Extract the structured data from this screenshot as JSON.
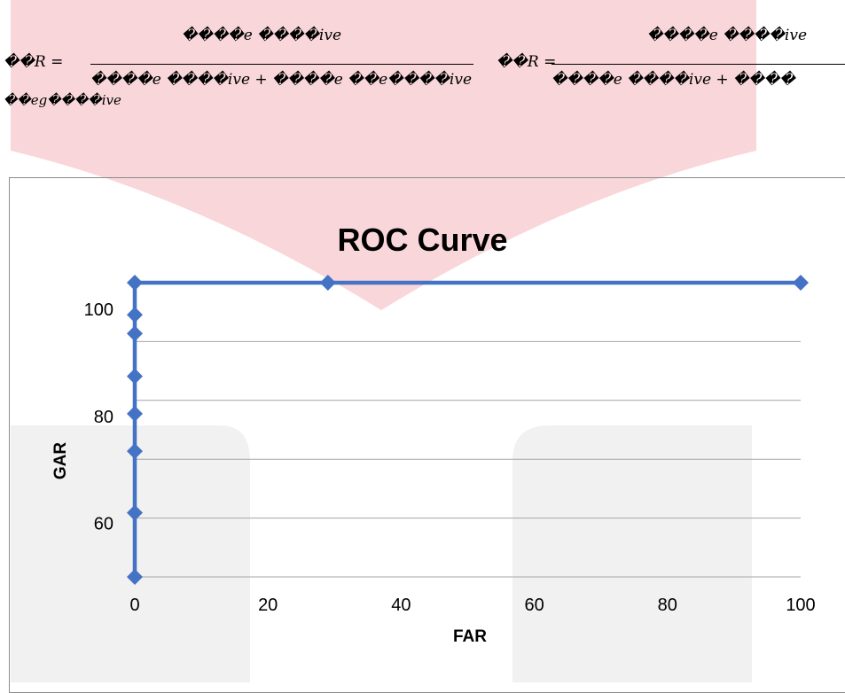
{
  "formula": {
    "line1_numerator": "����𝑒 ����𝑖𝑣𝑒",
    "line1_lhs": "��𝑅 =",
    "line1_denominator": "����𝑒 ����𝑖𝑣𝑒 + ����𝑒 ��𝑒����𝑖𝑣𝑒",
    "line1_continuation": "��𝑒𝑔����𝑖𝑣𝑒",
    "line2_lhs": "��𝑅 =",
    "line2_numerator": "����𝑒 ����𝑖𝑣𝑒",
    "line2_denominator": "����𝑒 ����𝑖𝑣𝑒 + ����"
  },
  "chart_data": {
    "type": "line",
    "title": "ROC Curve",
    "xlabel": "FAR",
    "ylabel": "GAR",
    "xlim": [
      0,
      100
    ],
    "ylim": [
      50,
      105
    ],
    "xticks": [
      0,
      20,
      40,
      60,
      80,
      100
    ],
    "yticks": [
      60,
      80,
      100
    ],
    "grid": "horizontal",
    "legend": "none",
    "series_color": "#4472c4",
    "series": [
      {
        "x": [
          0,
          0,
          0,
          0,
          0,
          0,
          0,
          0,
          29,
          100
        ],
        "y": [
          50,
          62,
          73.5,
          80.5,
          87.5,
          95.5,
          99,
          105,
          105,
          105
        ]
      }
    ]
  }
}
